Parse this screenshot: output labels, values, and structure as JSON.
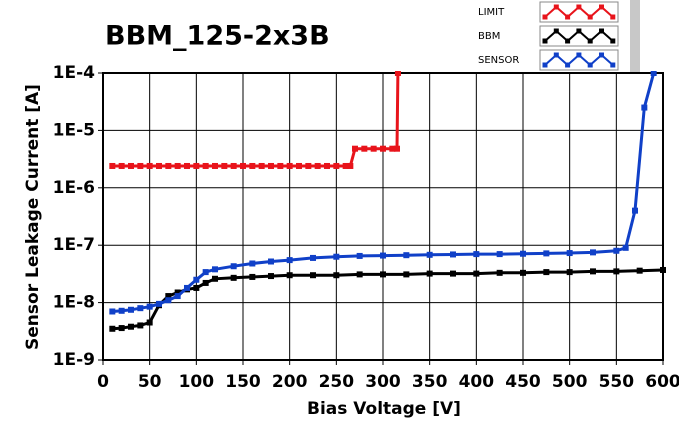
{
  "chart_data": {
    "type": "line",
    "title": "BBM_125-2x3B",
    "x_label": "Bias Voltage [V]",
    "y_label": "Sensor Leakage Current [A]",
    "y_scale": "log",
    "grid": true,
    "xlim": [
      0,
      600
    ],
    "xticks": [
      0,
      50,
      100,
      150,
      200,
      250,
      300,
      350,
      400,
      450,
      500,
      550,
      600
    ],
    "ylim": [
      1e-09,
      0.0001
    ],
    "yticks": [
      {
        "value": 1e-09,
        "label": "1E-9"
      },
      {
        "value": 1e-08,
        "label": "1E-8"
      },
      {
        "value": 1e-07,
        "label": "1E-7"
      },
      {
        "value": 1e-06,
        "label": "1E-6"
      },
      {
        "value": 1e-05,
        "label": "1E-5"
      },
      {
        "value": 0.0001,
        "label": "1E-4"
      }
    ],
    "series": [
      {
        "name": "LIMIT",
        "color": "#e8141b",
        "x": [
          10,
          20,
          30,
          40,
          50,
          60,
          70,
          80,
          90,
          100,
          110,
          120,
          130,
          140,
          150,
          160,
          170,
          180,
          190,
          200,
          210,
          220,
          230,
          240,
          250,
          260,
          265,
          270,
          280,
          290,
          300,
          310,
          315,
          316
        ],
        "values": [
          2.4e-06,
          2.4e-06,
          2.4e-06,
          2.4e-06,
          2.4e-06,
          2.4e-06,
          2.4e-06,
          2.4e-06,
          2.4e-06,
          2.4e-06,
          2.4e-06,
          2.4e-06,
          2.4e-06,
          2.4e-06,
          2.4e-06,
          2.4e-06,
          2.4e-06,
          2.4e-06,
          2.4e-06,
          2.4e-06,
          2.4e-06,
          2.4e-06,
          2.4e-06,
          2.4e-06,
          2.4e-06,
          2.4e-06,
          2.4e-06,
          4.8e-06,
          4.8e-06,
          4.8e-06,
          4.8e-06,
          4.8e-06,
          4.8e-06,
          0.0001
        ]
      },
      {
        "name": "BBM",
        "color": "#000000",
        "x": [
          10,
          20,
          30,
          40,
          50,
          60,
          70,
          80,
          90,
          100,
          110,
          120,
          140,
          160,
          180,
          200,
          225,
          250,
          275,
          300,
          325,
          350,
          375,
          400,
          425,
          450,
          475,
          500,
          525,
          550,
          575,
          600
        ],
        "values": [
          3.5e-09,
          3.6e-09,
          3.8e-09,
          4e-09,
          4.5e-09,
          9e-09,
          1.3e-08,
          1.5e-08,
          1.7e-08,
          1.8e-08,
          2.2e-08,
          2.6e-08,
          2.7e-08,
          2.8e-08,
          2.9e-08,
          3e-08,
          3e-08,
          3e-08,
          3.1e-08,
          3.1e-08,
          3.1e-08,
          3.2e-08,
          3.2e-08,
          3.2e-08,
          3.3e-08,
          3.3e-08,
          3.4e-08,
          3.4e-08,
          3.5e-08,
          3.5e-08,
          3.6e-08,
          3.7e-08
        ]
      },
      {
        "name": "SENSOR",
        "color": "#1040c8",
        "x": [
          10,
          20,
          30,
          40,
          50,
          60,
          70,
          80,
          90,
          100,
          110,
          120,
          140,
          160,
          180,
          200,
          225,
          250,
          275,
          300,
          325,
          350,
          375,
          400,
          425,
          450,
          475,
          500,
          525,
          550,
          560,
          570,
          580,
          590
        ],
        "values": [
          7e-09,
          7.2e-09,
          7.5e-09,
          8e-09,
          8.5e-09,
          9.5e-09,
          1.1e-08,
          1.3e-08,
          1.8e-08,
          2.5e-08,
          3.4e-08,
          3.8e-08,
          4.3e-08,
          4.8e-08,
          5.2e-08,
          5.5e-08,
          6e-08,
          6.3e-08,
          6.5e-08,
          6.6e-08,
          6.7e-08,
          6.8e-08,
          6.9e-08,
          7e-08,
          7e-08,
          7.1e-08,
          7.2e-08,
          7.3e-08,
          7.5e-08,
          8e-08,
          9e-08,
          4e-07,
          2.5e-05,
          0.0001
        ]
      }
    ]
  }
}
